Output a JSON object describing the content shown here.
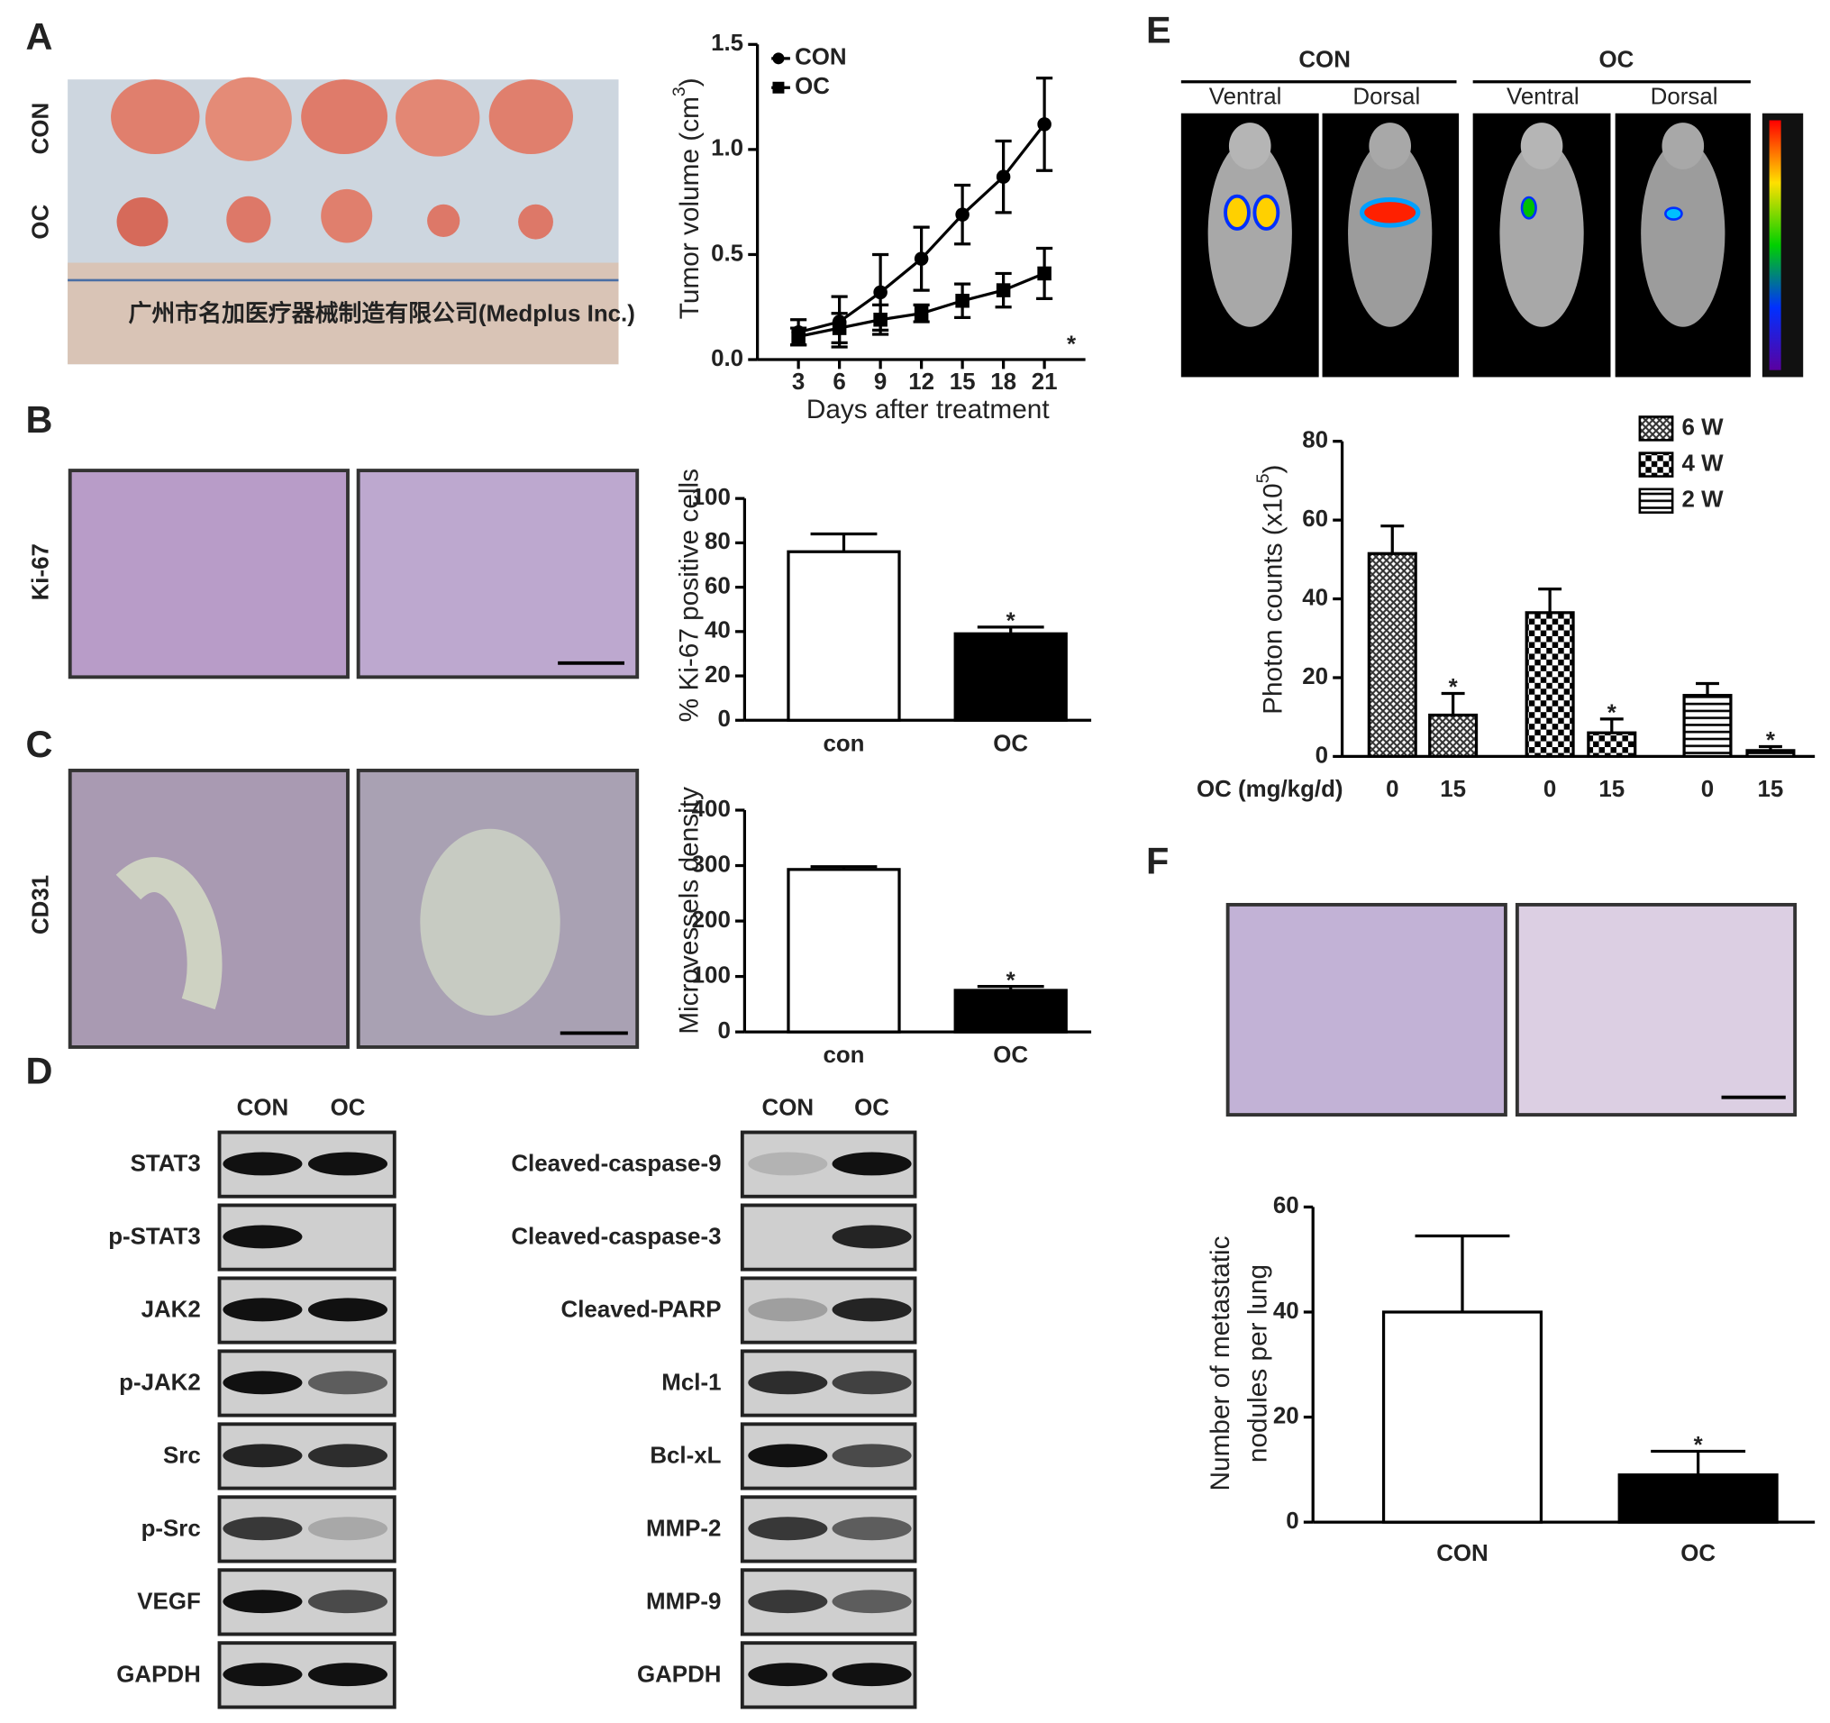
{
  "figure": {
    "panel_letters": [
      "A",
      "B",
      "C",
      "D",
      "E",
      "F"
    ],
    "panel_a": {
      "row_labels": [
        "CON",
        "OC"
      ]
    },
    "panel_b": {
      "stain_label": "Ki-67"
    },
    "panel_c": {
      "stain_label": "CD31"
    },
    "panel_d": {
      "left": {
        "lanes": [
          "CON",
          "OC"
        ],
        "proteins": [
          "STAT3",
          "p-STAT3",
          "JAK2",
          "p-JAK2",
          "Src",
          "p-Src",
          "VEGF",
          "GAPDH"
        ]
      },
      "right": {
        "lanes": [
          "CON",
          "OC"
        ],
        "proteins": [
          "Cleaved-caspase-9",
          "Cleaved-caspase-3",
          "Cleaved-PARP",
          "Mcl-1",
          "Bcl-xL",
          "MMP-2",
          "MMP-9",
          "GAPDH"
        ]
      }
    },
    "panel_e": {
      "groups": [
        {
          "label": "CON",
          "views": [
            "Ventral",
            "Dorsal"
          ]
        },
        {
          "label": "OC",
          "views": [
            "Ventral",
            "Dorsal"
          ]
        }
      ]
    }
  },
  "chart_data": [
    {
      "type": "line",
      "x": [
        3,
        6,
        9,
        12,
        15,
        18,
        21
      ],
      "xlim": [
        0,
        24
      ],
      "xticks": [
        3,
        6,
        9,
        12,
        15,
        18,
        21
      ],
      "ylim": [
        0,
        1.5
      ],
      "yticks": [
        {
          "value": 0,
          "label": "0.0"
        },
        {
          "value": 0.5,
          "label": "0.5"
        },
        {
          "value": 1,
          "label": "1.0"
        },
        {
          "value": 1.5,
          "label": "1.5"
        }
      ],
      "x_label": "Days after treatment",
      "y_label": {
        "text": "Tumor volume (cm",
        "superscript": "3",
        "suffix": ")"
      },
      "series": [
        {
          "name": "CON",
          "color": "#000000",
          "marker": "circle",
          "values": [
            0.13,
            0.18,
            0.32,
            0.48,
            0.69,
            0.87,
            1.12
          ],
          "errors": [
            0.06,
            0.12,
            0.18,
            0.15,
            0.14,
            0.17,
            0.22
          ]
        },
        {
          "name": "OC",
          "color": "#000000",
          "marker": "square",
          "values": [
            0.11,
            0.15,
            0.19,
            0.22,
            0.28,
            0.33,
            0.41
          ],
          "errors": [
            0.04,
            0.07,
            0.07,
            0.04,
            0.08,
            0.08,
            0.12
          ]
        }
      ],
      "annotation": "*",
      "legend": "top-left"
    },
    {
      "type": "bar",
      "categories": [
        "con",
        "OC"
      ],
      "values": [
        76,
        39
      ],
      "errors": [
        8,
        3
      ],
      "colors": [
        "#ffffff",
        "#000000"
      ],
      "ylim": [
        0,
        100
      ],
      "yticks": [
        0,
        20,
        40,
        60,
        80,
        100
      ],
      "y_label": "% Ki-67 positive cells",
      "annotation": {
        "text": "*",
        "category": "OC"
      }
    },
    {
      "type": "bar",
      "categories": [
        "con",
        "OC"
      ],
      "values": [
        293,
        75
      ],
      "errors": [
        5,
        7
      ],
      "colors": [
        "#ffffff",
        "#000000"
      ],
      "ylim": [
        0,
        400
      ],
      "yticks": [
        0,
        100,
        200,
        300,
        400
      ],
      "y_label": "Microvessels density",
      "annotation": {
        "text": "*",
        "category": "OC"
      }
    },
    {
      "type": "grouped_bar",
      "x_prefix": "OC (mg/kg/d)",
      "categories": [
        "0",
        "15"
      ],
      "series": [
        {
          "name": "6 W",
          "pattern": "crosshatch",
          "values": [
            51.5,
            10.5
          ],
          "errors": [
            7,
            5.5
          ]
        },
        {
          "name": "4 W",
          "pattern": "checkerboard",
          "values": [
            36.5,
            6
          ],
          "errors": [
            6,
            3.5
          ]
        },
        {
          "name": "2 W",
          "pattern": "horizontal-lines",
          "values": [
            15.5,
            1.5
          ],
          "errors": [
            3,
            1
          ]
        }
      ],
      "ylim": [
        0,
        80
      ],
      "yticks": [
        0,
        20,
        40,
        60,
        80
      ],
      "y_label": {
        "text": "Photon counts (x10",
        "superscript": "5",
        "suffix": ")"
      },
      "annotation": {
        "text": "*",
        "category": "15"
      },
      "legend": "top-right"
    },
    {
      "type": "bar",
      "categories": [
        "CON",
        "OC"
      ],
      "values": [
        40,
        9
      ],
      "errors": [
        14.5,
        4.5
      ],
      "colors": [
        "#ffffff",
        "#000000"
      ],
      "ylim": [
        0,
        60
      ],
      "yticks": [
        0,
        20,
        40,
        60
      ],
      "y_label": [
        "Number of metastatic",
        "nodules per lung"
      ],
      "annotation": {
        "text": "*",
        "category": "OC"
      }
    }
  ]
}
